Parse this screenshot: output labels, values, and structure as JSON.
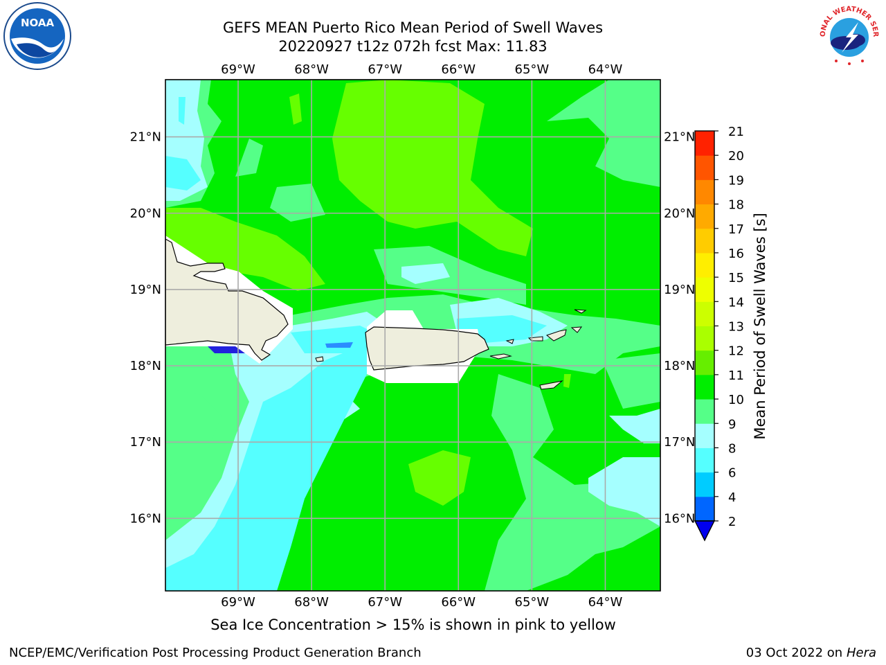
{
  "title": {
    "line1": "GEFS MEAN Puerto Rico Mean Period of Swell Waves",
    "line2": "20220927 t12z 072h fcst   Max: 11.83"
  },
  "logos": {
    "noaa": {
      "text": "NOAA",
      "icon": "noaa-logo-icon"
    },
    "nws": {
      "text": "NATIONAL WEATHER SERVICE",
      "icon": "nws-logo-icon"
    }
  },
  "map": {
    "lon_range": [
      -69.99,
      -63.25
    ],
    "lat_range": [
      15.05,
      21.75
    ],
    "lon_ticks": [
      {
        "value": -69,
        "label": "69°W"
      },
      {
        "value": -68,
        "label": "68°W"
      },
      {
        "value": -67,
        "label": "67°W"
      },
      {
        "value": -66,
        "label": "66°W"
      },
      {
        "value": -65,
        "label": "65°W"
      },
      {
        "value": -64,
        "label": "64°W"
      }
    ],
    "lat_ticks": [
      {
        "value": 21,
        "label": "21°N"
      },
      {
        "value": 20,
        "label": "20°N"
      },
      {
        "value": 19,
        "label": "19°N"
      },
      {
        "value": 18,
        "label": "18°N"
      },
      {
        "value": 17,
        "label": "17°N"
      },
      {
        "value": 16,
        "label": "16°N"
      }
    ],
    "grid": true,
    "field_colors": {
      "lt8": "#55ffff",
      "8_9": "#a5ffff",
      "9_10": "#55ff88",
      "10_11": "#00ee00",
      "11_12": "#66ff00",
      "land": "#eeeedd",
      "nodata": "#ffffff",
      "low_core": "#2222dd"
    }
  },
  "colorbar": {
    "label": "Mean Period of Swell Waves [s]",
    "extend": "min",
    "ticks": [
      2,
      4,
      6,
      8,
      9,
      10,
      11,
      12,
      13,
      14,
      15,
      16,
      17,
      18,
      19,
      20,
      21
    ],
    "colors": [
      "#0066ff",
      "#00ccff",
      "#55ffff",
      "#a5ffff",
      "#55ff88",
      "#00ee00",
      "#66ee00",
      "#aaff00",
      "#ccff00",
      "#eeff00",
      "#ffee00",
      "#ffcc00",
      "#ffaa00",
      "#ff8800",
      "#ff5500",
      "#ff2200"
    ],
    "extend_color": "#0000ee"
  },
  "note": "Sea Ice Concentration > 15% is shown in pink to yellow",
  "footer": {
    "left": "NCEP/EMC/Verification Post Processing Product Generation Branch",
    "date": "03 Oct 2022 on",
    "machine": "Hera"
  }
}
